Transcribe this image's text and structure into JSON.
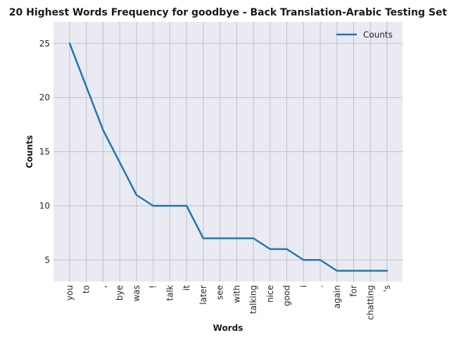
{
  "chart_data": {
    "type": "line",
    "title": "20 Highest Words Frequency for goodbye - Back Translation-Arabic Testing Set",
    "xlabel": "Words",
    "ylabel": "Counts",
    "categories": [
      "you",
      "to",
      ",",
      "bye",
      "was",
      "!",
      "talk",
      "it",
      "later",
      "see",
      "with",
      "talking",
      "nice",
      "good",
      "i",
      ".",
      "again",
      "for",
      "chatting",
      "'s"
    ],
    "series": [
      {
        "name": "Counts",
        "values": [
          25,
          21,
          17,
          14,
          11,
          10,
          10,
          10,
          7,
          7,
          7,
          7,
          6,
          6,
          5,
          5,
          4,
          4,
          4,
          4
        ]
      }
    ],
    "ylim": [
      3,
      27
    ],
    "yticks": [
      5,
      10,
      15,
      20,
      25
    ],
    "grid": true,
    "legend_position": "top-right",
    "colors": {
      "line": "#1f77b4",
      "plot_bg": "#eaeaf2",
      "grid": "#c0c0c8"
    }
  }
}
